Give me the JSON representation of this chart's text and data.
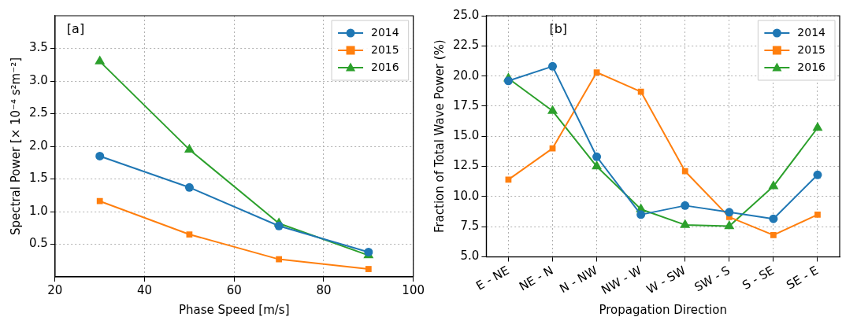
{
  "chart_data": [
    {
      "type": "line",
      "xlabel": "Phase Speed [m/s]",
      "ylabel": "Spectral Power [× 10⁻⁴ s²m⁻²]",
      "x": [
        30,
        50,
        70,
        90
      ],
      "xlim": [
        20,
        100
      ],
      "xticks": [
        20,
        40,
        60,
        80,
        100
      ],
      "ylim": [
        0,
        4
      ],
      "yticks": [
        {
          "value": 0.5,
          "label": "0.5"
        },
        {
          "value": 1,
          "label": "1.0"
        },
        {
          "value": 1.5,
          "label": "1.5"
        },
        {
          "value": 2,
          "label": "2.0"
        },
        {
          "value": 2.5,
          "label": "2.5"
        },
        {
          "value": 3,
          "label": "3.0"
        },
        {
          "value": 3.5,
          "label": "3.5"
        }
      ],
      "grid": true,
      "legend": "top right",
      "line_style": "solid",
      "annotations": [
        "[a]"
      ],
      "series": [
        {
          "name": "2014",
          "color": "#1f77b4",
          "marker": "circle",
          "values": [
            1.85,
            1.37,
            0.78,
            0.38
          ]
        },
        {
          "name": "2015",
          "color": "#ff7f0e",
          "marker": "square",
          "values": [
            1.16,
            0.65,
            0.27,
            0.12
          ]
        },
        {
          "name": "2016",
          "color": "#2ca02c",
          "marker": "triangle",
          "values": [
            3.3,
            1.95,
            0.82,
            0.33
          ]
        }
      ]
    },
    {
      "type": "line",
      "xlabel": "Propagation Direction",
      "ylabel": "Fraction of Total Wave Power (%)",
      "categories": [
        "E - NE",
        "NE - N",
        "N - NW",
        "NW - W",
        "W - SW",
        "SW - S",
        "S - SE",
        "SE - E"
      ],
      "ylim": [
        5,
        25
      ],
      "yticks": [
        {
          "value": 5,
          "label": "5.0"
        },
        7.5,
        {
          "value": 10,
          "label": "10.0"
        },
        12.5,
        {
          "value": 15,
          "label": "15.0"
        },
        17.5,
        {
          "value": 20,
          "label": "20.0"
        },
        22.5,
        {
          "value": 25,
          "label": "25.0"
        }
      ],
      "grid": true,
      "legend": "top right",
      "line_style": "solid",
      "annotations": [
        "[b]"
      ],
      "series": [
        {
          "name": "2014",
          "color": "#1f77b4",
          "marker": "circle",
          "values": [
            19.6,
            20.8,
            13.3,
            8.5,
            9.25,
            8.7,
            8.15,
            11.8
          ]
        },
        {
          "name": "2015",
          "color": "#ff7f0e",
          "marker": "square",
          "values": [
            11.4,
            14.0,
            20.3,
            18.7,
            12.1,
            8.3,
            6.8,
            8.5
          ]
        },
        {
          "name": "2016",
          "color": "#2ca02c",
          "marker": "triangle",
          "values": [
            19.8,
            17.1,
            12.5,
            8.95,
            7.65,
            7.55,
            10.85,
            15.7
          ]
        }
      ]
    }
  ]
}
